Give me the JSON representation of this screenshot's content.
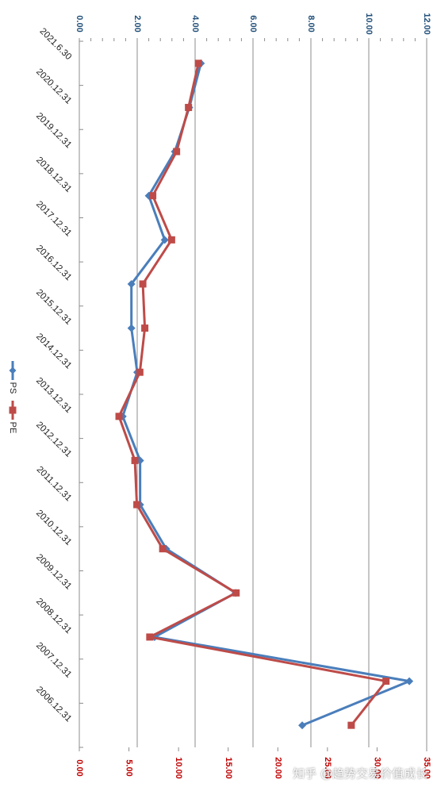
{
  "watermark": "知乎 @趋势交易价值成长",
  "chart_data": {
    "type": "line",
    "orientation": "rotated-90-clockwise",
    "categories": [
      "2006.12.31",
      "2007.12.31",
      "2008.12.31",
      "2009.12.31",
      "2010.12.31",
      "2011.12.31",
      "2012.12.31",
      "2013.12.31",
      "2014.12.31",
      "2015.12.31",
      "2016.12.31",
      "2017.12.31",
      "2018.12.31",
      "2019.12.31",
      "2020.12.31",
      "2021.6.30"
    ],
    "series": [
      {
        "name": "PS",
        "axis": "primary",
        "color": "#4a7ebb",
        "marker": "diamond",
        "values": [
          7.7,
          11.4,
          2.6,
          5.4,
          3.0,
          2.1,
          2.1,
          1.5,
          2.0,
          1.8,
          1.8,
          2.95,
          2.4,
          3.3,
          3.8,
          4.2
        ]
      },
      {
        "name": "PE",
        "axis": "secondary",
        "color": "#be4b48",
        "marker": "square",
        "values": [
          27.4,
          30.9,
          7.1,
          15.8,
          8.4,
          5.8,
          5.6,
          4.0,
          6.1,
          6.6,
          6.4,
          9.3,
          7.4,
          9.8,
          11.0,
          12.0
        ]
      }
    ],
    "primary_axis": {
      "range": [
        0,
        12
      ],
      "ticks": [
        "0.00",
        "2.00",
        "4.00",
        "6.00",
        "8.00",
        "10.00",
        "12.00"
      ],
      "color": "#1f4e79"
    },
    "secondary_axis": {
      "range": [
        0,
        35
      ],
      "ticks": [
        "0.00",
        "5.00",
        "10.00",
        "15.00",
        "20.00",
        "25.00",
        "30.00",
        "35.00"
      ],
      "color": "#c00000"
    },
    "gridlines": true,
    "legend_position": "left"
  }
}
